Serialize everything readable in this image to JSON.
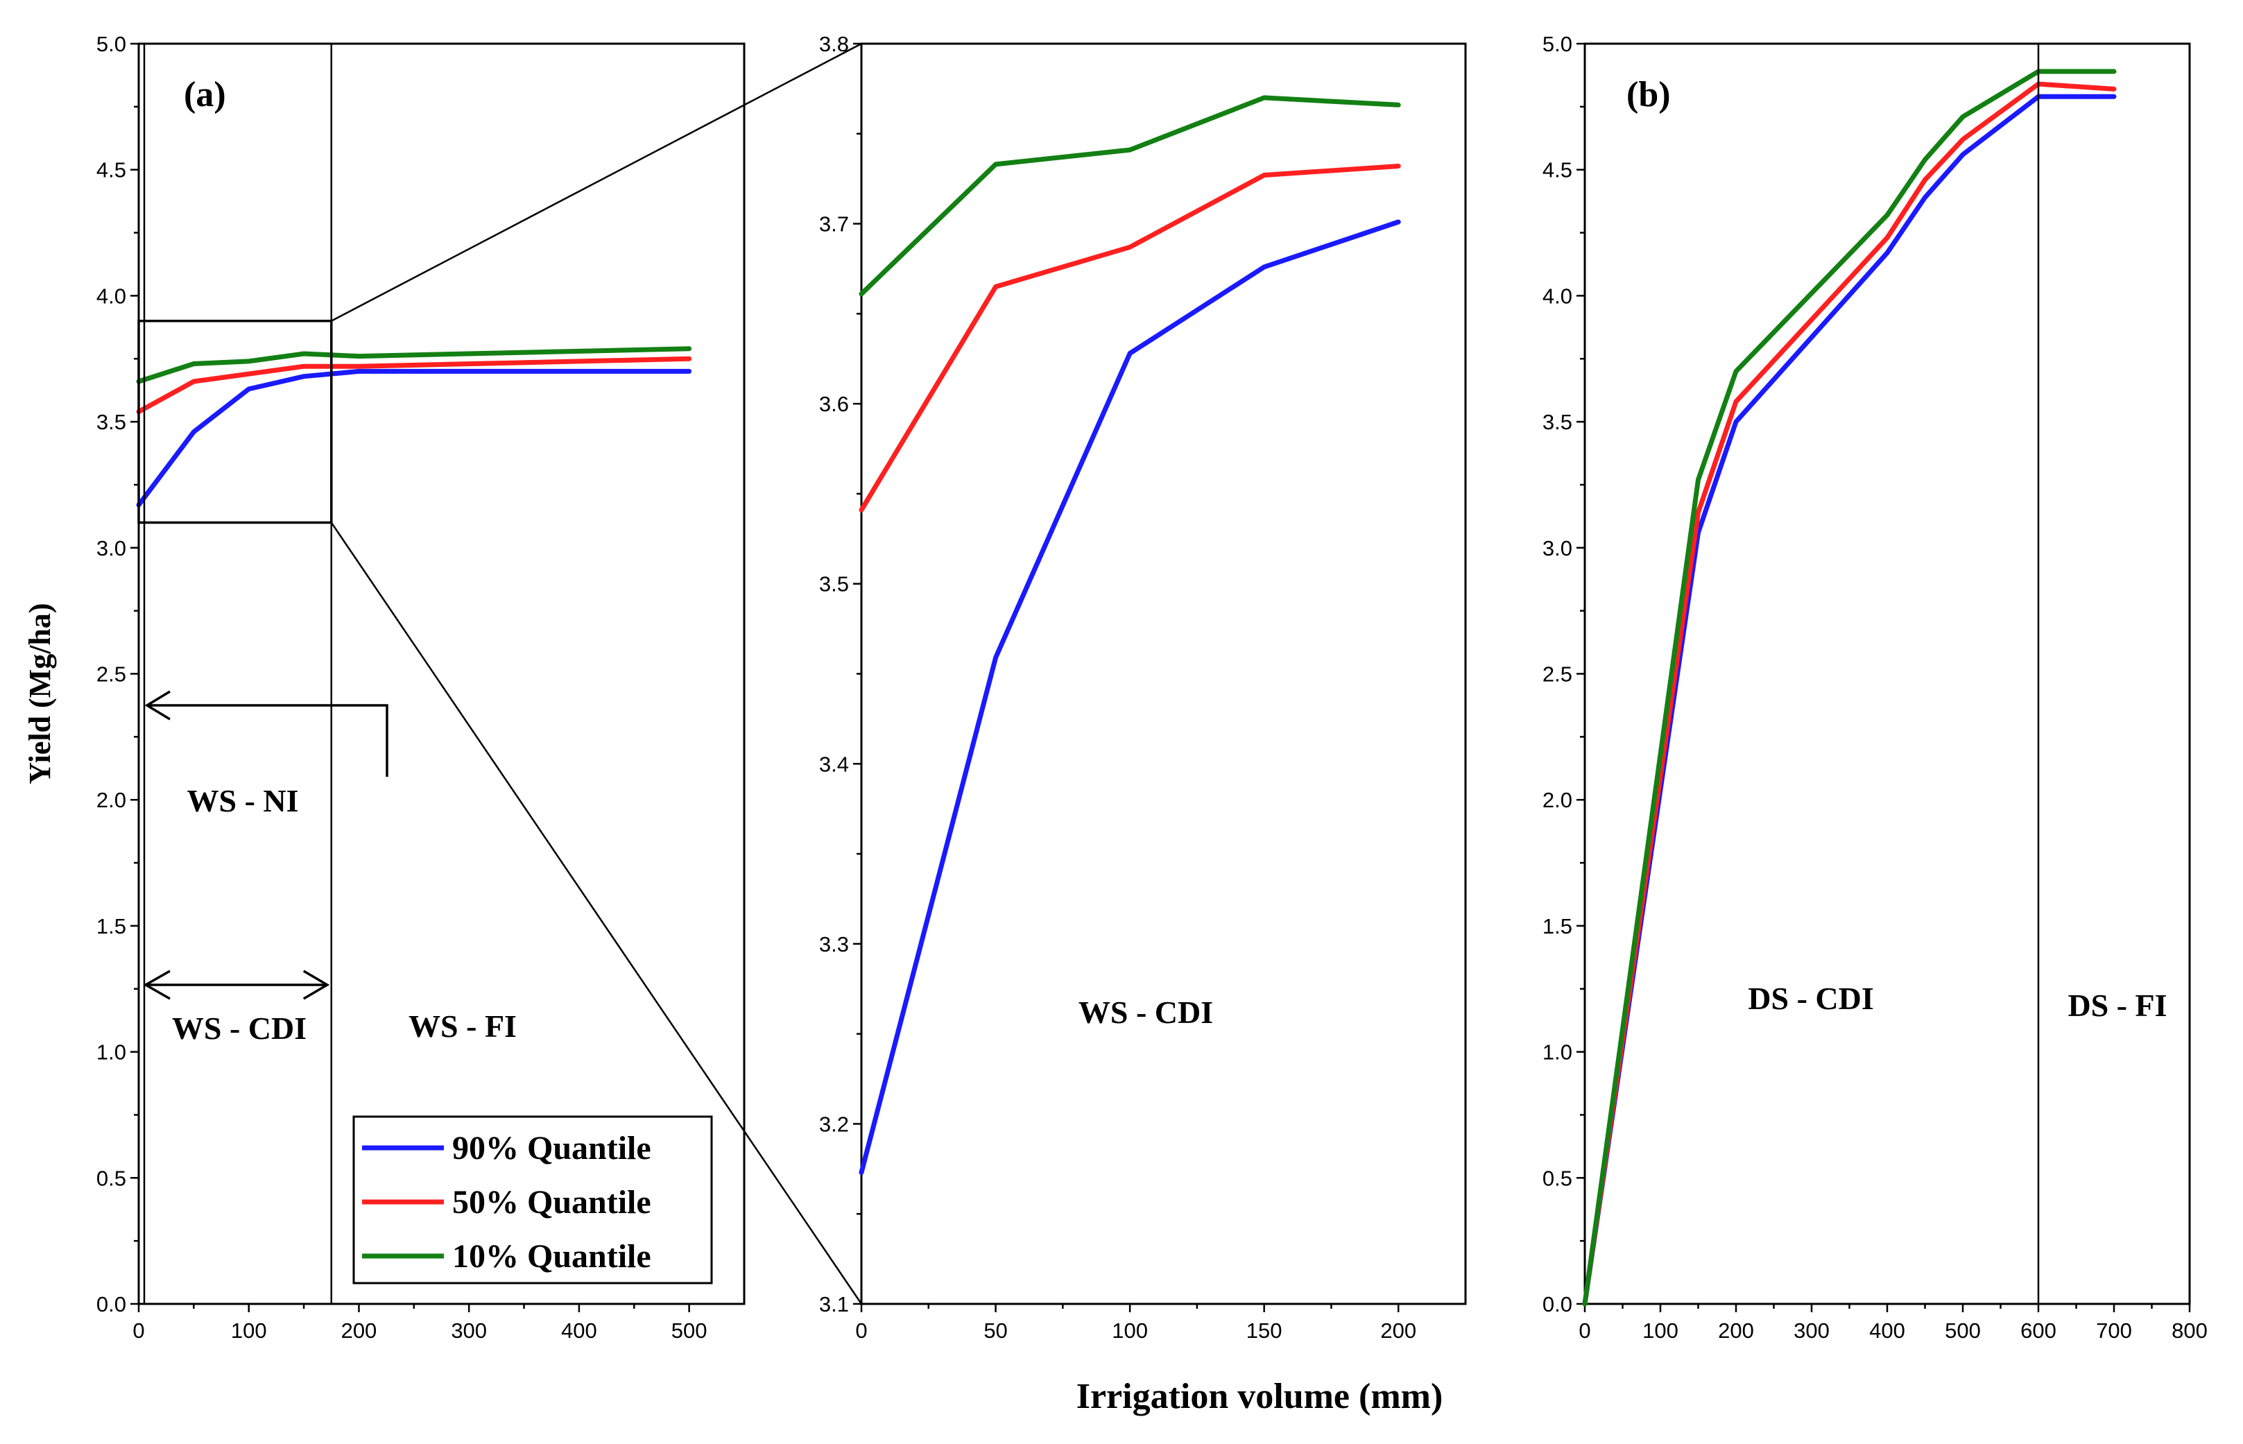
{
  "colors": {
    "q90": "#1a1aff",
    "q50": "#ff2020",
    "q10": "#138013"
  },
  "chart_data": [
    {
      "id": "a",
      "type": "line",
      "panel_label": "(a)",
      "xlim": [
        0,
        550
      ],
      "ylim": [
        0,
        5
      ],
      "x_ticks": [
        "0",
        "100",
        "200",
        "300",
        "400",
        "500"
      ],
      "y_ticks": [
        "0.0",
        "0.5",
        "1.0",
        "1.5",
        "2.0",
        "2.5",
        "3.0",
        "3.5",
        "4.0",
        "4.5",
        "5.0"
      ],
      "ylabel": "Yield (Mg/ha)",
      "x": [
        0,
        50,
        100,
        150,
        200,
        500
      ],
      "series": [
        {
          "name": "90% Quantile",
          "color_key": "q90",
          "values": [
            3.17,
            3.46,
            3.63,
            3.68,
            3.7,
            3.7
          ]
        },
        {
          "name": "50% Quantile",
          "color_key": "q50",
          "values": [
            3.54,
            3.66,
            3.69,
            3.72,
            3.72,
            3.75
          ]
        },
        {
          "name": "10% Quantile",
          "color_key": "q10",
          "values": [
            3.66,
            3.73,
            3.74,
            3.77,
            3.76,
            3.79
          ]
        }
      ],
      "annotations": {
        "ws_ni": "WS - NI",
        "ws_cdi": "WS - CDI",
        "ws_fi": "WS - FI"
      },
      "zoom_box": {
        "x": [
          0,
          175
        ],
        "y": [
          3.1,
          3.9
        ]
      },
      "boundary_x": 175,
      "legend": {
        "position": "bottom-right",
        "entries": [
          "90% Quantile",
          "50% Quantile",
          "10% Quantile"
        ]
      }
    },
    {
      "id": "zoom",
      "type": "line",
      "xlim": [
        0,
        225
      ],
      "ylim": [
        3.1,
        3.8
      ],
      "x_ticks": [
        "0",
        "50",
        "100",
        "150",
        "200"
      ],
      "y_ticks": [
        "3.1",
        "3.2",
        "3.3",
        "3.4",
        "3.5",
        "3.6",
        "3.7",
        "3.8"
      ],
      "xlabel": "Irrigation volume (mm)",
      "x": [
        0,
        50,
        100,
        150,
        200
      ],
      "series": [
        {
          "name": "90% Quantile",
          "color_key": "q90",
          "values": [
            3.173,
            3.459,
            3.628,
            3.676,
            3.701
          ]
        },
        {
          "name": "50% Quantile",
          "color_key": "q50",
          "values": [
            3.541,
            3.665,
            3.687,
            3.727,
            3.732
          ]
        },
        {
          "name": "10% Quantile",
          "color_key": "q10",
          "values": [
            3.661,
            3.733,
            3.741,
            3.77,
            3.766
          ]
        }
      ],
      "annotations": {
        "ws_cdi": "WS - CDI"
      }
    },
    {
      "id": "b",
      "type": "line",
      "panel_label": "(b)",
      "xlim": [
        0,
        800
      ],
      "ylim": [
        0,
        5
      ],
      "x_ticks": [
        "0",
        "100",
        "200",
        "300",
        "400",
        "500",
        "600",
        "700",
        "800"
      ],
      "y_ticks": [
        "0.0",
        "0.5",
        "1.0",
        "1.5",
        "2.0",
        "2.5",
        "3.0",
        "3.5",
        "4.0",
        "4.5",
        "5.0"
      ],
      "x": [
        0,
        150,
        200,
        400,
        450,
        500,
        600,
        700
      ],
      "series": [
        {
          "name": "90% Quantile",
          "color_key": "q90",
          "values": [
            0.0,
            3.06,
            3.5,
            4.17,
            4.39,
            4.56,
            4.79,
            4.79
          ]
        },
        {
          "name": "50% Quantile",
          "color_key": "q50",
          "values": [
            0.0,
            3.14,
            3.58,
            4.23,
            4.46,
            4.62,
            4.84,
            4.82
          ]
        },
        {
          "name": "10% Quantile",
          "color_key": "q10",
          "values": [
            0.0,
            3.27,
            3.7,
            4.32,
            4.54,
            4.71,
            4.89,
            4.89
          ]
        }
      ],
      "annotations": {
        "ds_cdi": "DS - CDI",
        "ds_fi": "DS - FI"
      },
      "boundary_x": 600
    }
  ]
}
